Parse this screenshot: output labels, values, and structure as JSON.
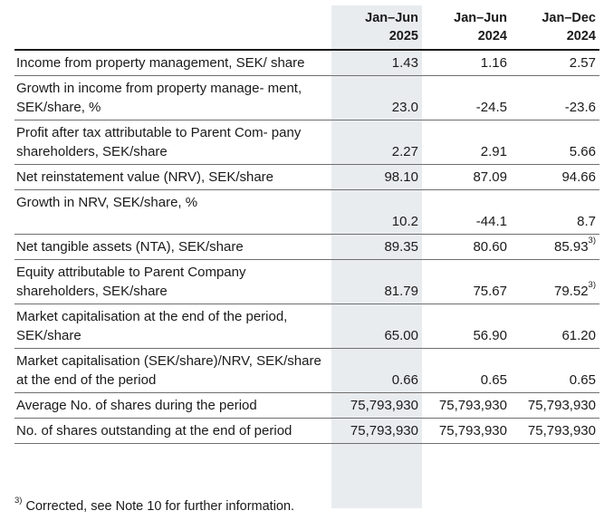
{
  "columns": [
    {
      "line1": "Jan–Jun",
      "line2": "2025"
    },
    {
      "line1": "Jan–Jun",
      "line2": "2024"
    },
    {
      "line1": "Jan–Dec",
      "line2": "2024"
    }
  ],
  "rows": [
    {
      "label": "Income from property management, SEK/ share",
      "v": [
        "1.43",
        "1.16",
        "2.57"
      ]
    },
    {
      "label": "Growth in income from property manage- ment, SEK/share, %",
      "v": [
        "23.0",
        "-24.5",
        "-23.6"
      ]
    },
    {
      "label": "Profit after tax attributable to Parent Com- pany shareholders, SEK/share",
      "v": [
        "2.27",
        "2.91",
        "5.66"
      ]
    },
    {
      "label": "Net reinstatement value (NRV), SEK/share",
      "v": [
        "98.10",
        "87.09",
        "94.66"
      ]
    },
    {
      "label": "Growth in NRV, SEK/share, %",
      "v": [
        "10.2",
        "-44.1",
        "8.7"
      ]
    },
    {
      "label": "Net tangible assets (NTA), SEK/share",
      "v": [
        "89.35",
        "80.60",
        "85.93"
      ],
      "note3": "3)"
    },
    {
      "label": "Equity attributable to Parent Company shareholders, SEK/share",
      "v": [
        "81.79",
        "75.67",
        "79.52"
      ],
      "note3": "3)"
    },
    {
      "label": "Market capitalisation at the end of the period, SEK/share",
      "v": [
        "65.00",
        "56.90",
        "61.20"
      ]
    },
    {
      "label": "Market capitalisation (SEK/share)/NRV, SEK/share at the end of the period",
      "v": [
        "0.66",
        "0.65",
        "0.65"
      ]
    },
    {
      "label": "Average No. of shares during the period",
      "v": [
        "75,793,930",
        "75,793,930",
        "75,793,930"
      ]
    },
    {
      "label": "No. of shares outstanding at the end of period",
      "v": [
        "75,793,930",
        "75,793,930",
        "75,793,930"
      ]
    }
  ],
  "footnote": {
    "marker": "3)",
    "text": " Corrected, see Note 10 for further information."
  }
}
